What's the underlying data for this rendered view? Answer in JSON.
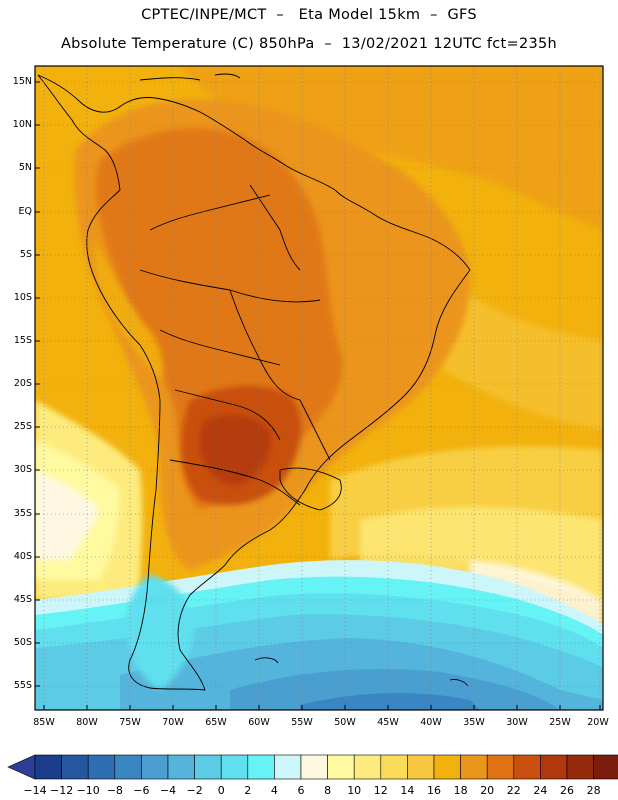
{
  "header": {
    "title_line1": "CPTEC/INPE/MCT  –   Eta Model 15km  –  GFS",
    "title_line2": "Absolute Temperature (C) 850hPa  –  13/02/2021 12UTC fct=235h"
  },
  "axes": {
    "lat_labels": [
      "15N",
      "10N",
      "5N",
      "EQ",
      "5S",
      "10S",
      "15S",
      "20S",
      "25S",
      "30S",
      "35S",
      "40S",
      "45S",
      "50S",
      "55S"
    ],
    "lon_labels": [
      "85W",
      "80W",
      "75W",
      "70W",
      "65W",
      "60W",
      "55W",
      "50W",
      "45W",
      "40W",
      "35W",
      "30W",
      "25W",
      "20W"
    ]
  },
  "colorbar": {
    "labels": [
      "−14",
      "−12",
      "−10",
      "−8",
      "−6",
      "−4",
      "−2",
      "0",
      "2",
      "4",
      "6",
      "8",
      "10",
      "12",
      "14",
      "16",
      "18",
      "20",
      "22",
      "24",
      "26",
      "28"
    ],
    "colors": [
      "#1c3c8c",
      "#2457a0",
      "#2d6fb2",
      "#3a86c2",
      "#4a9ed0",
      "#55b4dc",
      "#5ccbe6",
      "#60dfee",
      "#66f3f6",
      "#cdf6fa",
      "#fef8e2",
      "#fff9a0",
      "#fdeb7d",
      "#fbdb5a",
      "#f7c83f",
      "#f2b10d",
      "#eb951a",
      "#df7212",
      "#c9500f",
      "#b1370c",
      "#962a0c",
      "#7a1d0f"
    ],
    "under_color": "#2a3f95",
    "over_color": "#8a1030"
  }
}
